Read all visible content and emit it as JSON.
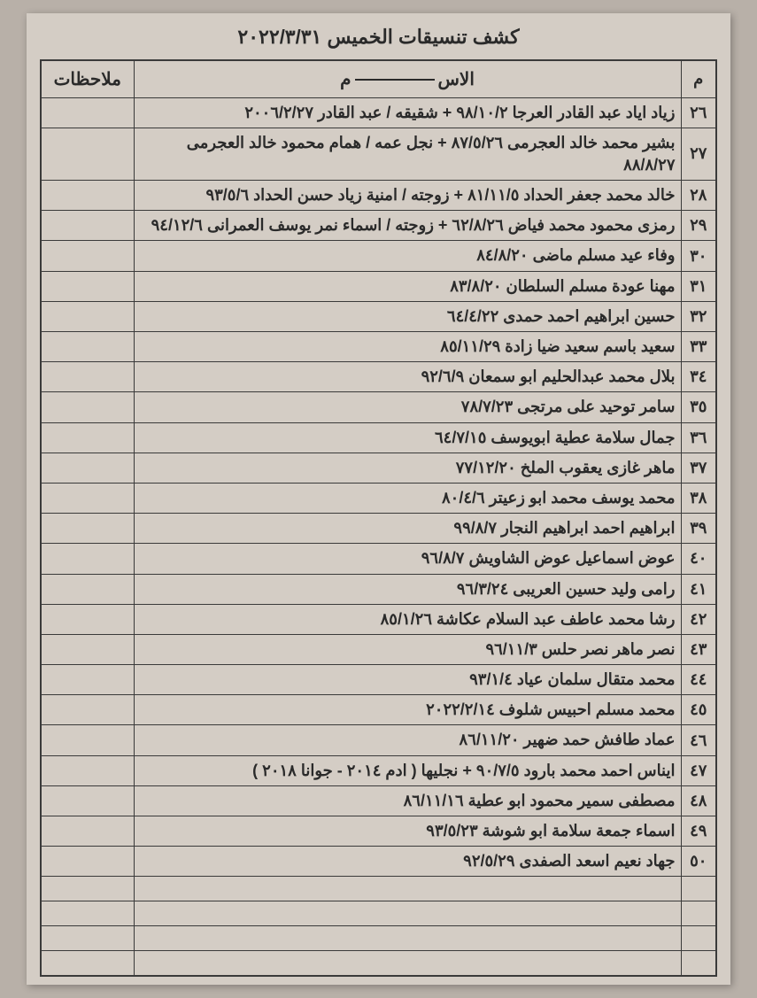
{
  "title": "كشف تنسيقات الخميس ٢٠٢٢/٣/٣١",
  "headers": {
    "num": "م",
    "name_prefix": "الاس",
    "name_suffix": "م",
    "notes": "ملاحظات"
  },
  "rows": [
    {
      "num": "٢٦",
      "name": "زياد اياد عبد القادر العرجا ٩٨/١٠/٢ + شقيقه / عبد القادر ٢٠٠٦/٢/٢٧",
      "notes": ""
    },
    {
      "num": "٢٧",
      "name": "بشير محمد خالد العجرمى ٨٧/٥/٢٦ + نجل عمه / همام محمود خالد العجرمى ٨٨/٨/٢٧",
      "notes": ""
    },
    {
      "num": "٢٨",
      "name": "خالد محمد جعفر الحداد ٨١/١١/٥ + زوجته / امنية زياد حسن الحداد ٩٣/٥/٦",
      "notes": ""
    },
    {
      "num": "٢٩",
      "name": "رمزى محمود محمد فياض ٦٢/٨/٢٦ + زوجته / اسماء نمر يوسف العمرانى ٩٤/١٢/٦",
      "notes": ""
    },
    {
      "num": "٣٠",
      "name": "وفاء عيد مسلم ماضى ٨٤/٨/٢٠",
      "notes": ""
    },
    {
      "num": "٣١",
      "name": "مهنا عودة مسلم السلطان ٨٣/٨/٢٠",
      "notes": ""
    },
    {
      "num": "٣٢",
      "name": "حسين ابراهيم احمد حمدى ٦٤/٤/٢٢",
      "notes": ""
    },
    {
      "num": "٣٣",
      "name": "سعيد باسم سعيد ضيا زادة ٨٥/١١/٢٩",
      "notes": ""
    },
    {
      "num": "٣٤",
      "name": "بلال محمد عبدالحليم ابو سمعان ٩٢/٦/٩",
      "notes": ""
    },
    {
      "num": "٣٥",
      "name": "سامر توحيد على مرتجى ٧٨/٧/٢٣",
      "notes": ""
    },
    {
      "num": "٣٦",
      "name": "جمال سلامة عطية ابويوسف ٦٤/٧/١٥",
      "notes": ""
    },
    {
      "num": "٣٧",
      "name": "ماهر غازى يعقوب الملخ ٧٧/١٢/٢٠",
      "notes": ""
    },
    {
      "num": "٣٨",
      "name": "محمد يوسف محمد ابو زعيتر ٨٠/٤/٦",
      "notes": ""
    },
    {
      "num": "٣٩",
      "name": "ابراهيم احمد ابراهيم النجار ٩٩/٨/٧",
      "notes": ""
    },
    {
      "num": "٤٠",
      "name": "عوض اسماعيل عوض الشاويش ٩٦/٨/٧",
      "notes": ""
    },
    {
      "num": "٤١",
      "name": "رامى وليد حسين العريبى ٩٦/٣/٢٤",
      "notes": ""
    },
    {
      "num": "٤٢",
      "name": "رشا محمد عاطف عبد السلام عكاشة ٨٥/١/٢٦",
      "notes": ""
    },
    {
      "num": "٤٣",
      "name": "نصر ماهر نصر حلس ٩٦/١١/٣",
      "notes": ""
    },
    {
      "num": "٤٤",
      "name": "محمد متقال سلمان عياد ٩٣/١/٤",
      "notes": ""
    },
    {
      "num": "٤٥",
      "name": "محمد مسلم احبيس شلوف ٢٠٢٢/٢/١٤",
      "notes": ""
    },
    {
      "num": "٤٦",
      "name": "عماد طافش حمد ضهير ٨٦/١١/٢٠",
      "notes": ""
    },
    {
      "num": "٤٧",
      "name": "ايناس احمد محمد بارود ٩٠/٧/٥ + نجليها ( ادم ٢٠١٤ - جوانا ٢٠١٨ )",
      "notes": ""
    },
    {
      "num": "٤٨",
      "name": "مصطفى سمير محمود ابو عطية ٨٦/١١/١٦",
      "notes": ""
    },
    {
      "num": "٤٩",
      "name": "اسماء جمعة سلامة ابو شوشة ٩٣/٥/٢٣",
      "notes": ""
    },
    {
      "num": "٥٠",
      "name": "جهاد نعيم اسعد الصفدى ٩٢/٥/٢٩",
      "notes": ""
    }
  ],
  "empty_rows_count": 4,
  "styling": {
    "background_color": "#b8b0a8",
    "page_color": "#d4cdc5",
    "border_color": "#3a3a3a",
    "text_color": "#2a2a2a",
    "title_fontsize": 22,
    "cell_fontsize": 18,
    "header_fontsize": 20
  }
}
